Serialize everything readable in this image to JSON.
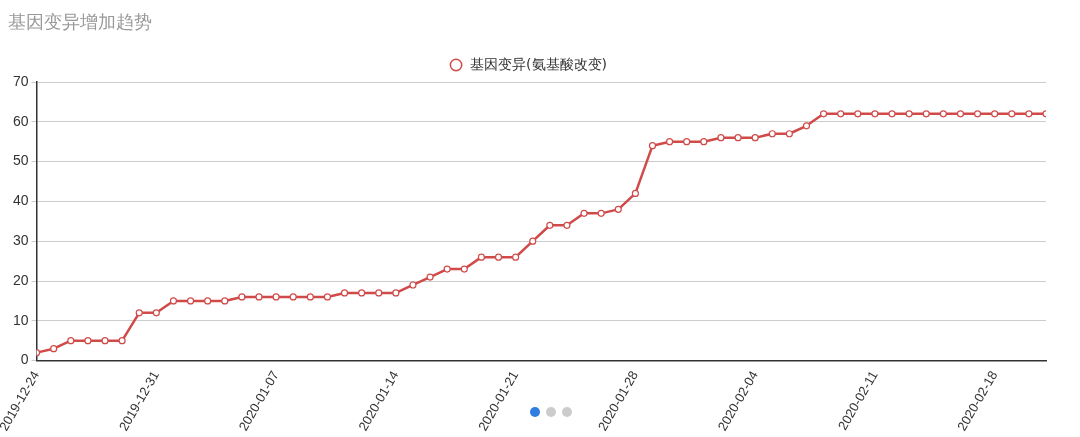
{
  "chart_data": {
    "type": "line",
    "title": "基因变异增加趋势",
    "x": [
      "2019-12-24",
      "2019-12-25",
      "2019-12-26",
      "2019-12-27",
      "2019-12-28",
      "2019-12-29",
      "2019-12-30",
      "2019-12-31",
      "2020-01-01",
      "2020-01-02",
      "2020-01-03",
      "2020-01-04",
      "2020-01-05",
      "2020-01-06",
      "2020-01-07",
      "2020-01-08",
      "2020-01-09",
      "2020-01-10",
      "2020-01-11",
      "2020-01-12",
      "2020-01-13",
      "2020-01-14",
      "2020-01-15",
      "2020-01-16",
      "2020-01-17",
      "2020-01-18",
      "2020-01-19",
      "2020-01-20",
      "2020-01-21",
      "2020-01-22",
      "2020-01-23",
      "2020-01-24",
      "2020-01-25",
      "2020-01-26",
      "2020-01-27",
      "2020-01-28",
      "2020-01-29",
      "2020-01-30",
      "2020-01-31",
      "2020-02-01",
      "2020-02-02",
      "2020-02-03",
      "2020-02-04",
      "2020-02-05",
      "2020-02-06",
      "2020-02-07",
      "2020-02-08",
      "2020-02-09",
      "2020-02-10",
      "2020-02-11",
      "2020-02-12",
      "2020-02-13",
      "2020-02-14",
      "2020-02-15",
      "2020-02-16",
      "2020-02-17",
      "2020-02-18",
      "2020-02-19",
      "2020-02-20",
      "2020-02-21"
    ],
    "series": [
      {
        "name": "基因变异(氨基酸改变)",
        "color": "#d14a4a",
        "values": [
          2,
          3,
          5,
          5,
          5,
          5,
          12,
          12,
          15,
          15,
          15,
          15,
          16,
          16,
          16,
          16,
          16,
          16,
          17,
          17,
          17,
          17,
          19,
          21,
          23,
          23,
          26,
          26,
          26,
          30,
          34,
          34,
          37,
          37,
          38,
          42,
          54,
          55,
          55,
          55,
          56,
          56,
          56,
          57,
          57,
          59,
          62,
          62,
          62,
          62,
          62,
          62,
          62,
          62,
          62,
          62,
          62,
          62,
          62,
          62
        ]
      }
    ],
    "xlim": [
      "2019-12-24",
      "2020-02-21"
    ],
    "xticks": [
      "2019-12-24",
      "2019-12-31",
      "2020-01-07",
      "2020-01-14",
      "2020-01-21",
      "2020-01-28",
      "2020-02-04",
      "2020-02-11",
      "2020-02-18"
    ],
    "ylim": [
      0,
      70
    ],
    "yticks": [
      0,
      10,
      20,
      30,
      40,
      50,
      60,
      70
    ],
    "grid": "y",
    "legend": "top",
    "marker": "circle",
    "line_style": "solid"
  }
}
